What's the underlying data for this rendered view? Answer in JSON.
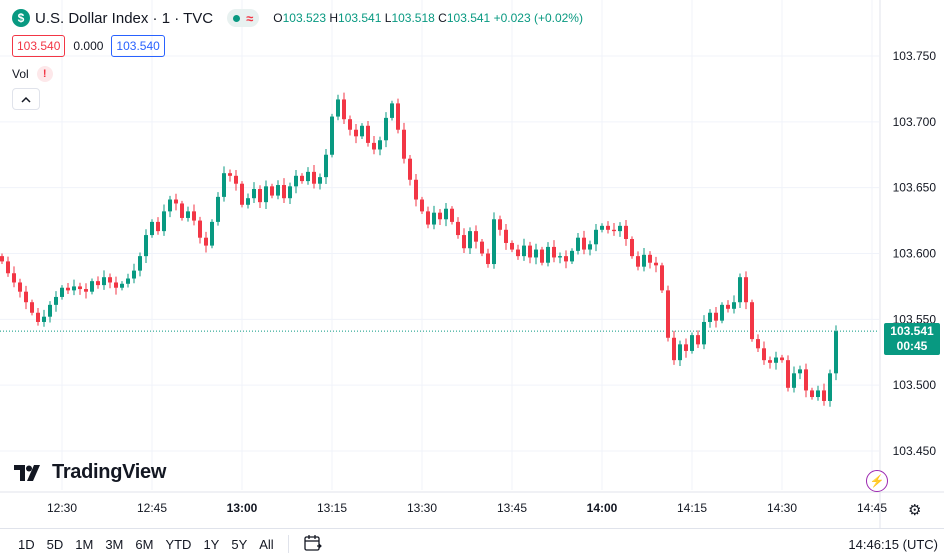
{
  "header": {
    "symbol_badge": "$",
    "title": "U.S. Dollar Index · 1 · TVC",
    "ohlc": {
      "o_label": "O",
      "o": "103.523",
      "h_label": "H",
      "h": "103.541",
      "l_label": "L",
      "l": "103.518",
      "c_label": "C",
      "c": "103.541",
      "change": "+0.023 (+0.02%)"
    },
    "sell_price": "103.540",
    "spread": "0.000",
    "buy_price": "103.540",
    "vol_label": "Vol",
    "vol_warning": "!"
  },
  "logo_text": "TradingView",
  "current_price": {
    "value": "103.541",
    "countdown": "00:45",
    "color": "#089981"
  },
  "colors": {
    "up": "#089981",
    "down": "#f23645",
    "grid": "#f0f3fa"
  },
  "bottom_bar": {
    "ranges": [
      "1D",
      "5D",
      "1M",
      "3M",
      "6M",
      "YTD",
      "1Y",
      "5Y",
      "All"
    ],
    "clock": "14:46:15 (UTC)"
  },
  "icons": {
    "calendar": "calendar-range-icon",
    "settings": "gear-icon",
    "bolt": "lightning-icon",
    "collapse": "chevron-up-icon"
  },
  "chart_data": {
    "type": "candlestick",
    "interval": "1 minute",
    "ylim": [
      103.425,
      103.775
    ],
    "y_ticks": [
      "103.750",
      "103.700",
      "103.650",
      "103.600",
      "103.550",
      "103.500",
      "103.450"
    ],
    "x_ticks": [
      "12:30",
      "12:45",
      "13:00",
      "13:15",
      "13:30",
      "13:45",
      "14:00",
      "14:15",
      "14:30",
      "14:45"
    ],
    "x_start": "12:20",
    "last_price": 103.541,
    "closes": [
      103.594,
      103.585,
      103.578,
      103.571,
      103.563,
      103.555,
      103.548,
      103.552,
      103.561,
      103.567,
      103.574,
      103.572,
      103.575,
      103.573,
      103.571,
      103.579,
      103.576,
      103.582,
      103.578,
      103.574,
      103.577,
      103.581,
      103.587,
      103.598,
      103.614,
      103.624,
      103.617,
      103.632,
      103.641,
      103.638,
      103.627,
      103.632,
      103.625,
      103.612,
      103.606,
      103.624,
      103.643,
      103.661,
      103.659,
      103.653,
      103.637,
      103.642,
      103.649,
      103.639,
      103.651,
      103.644,
      103.652,
      103.642,
      103.651,
      103.659,
      103.655,
      103.662,
      103.653,
      103.658,
      103.675,
      103.704,
      103.717,
      103.702,
      103.694,
      103.689,
      103.697,
      103.684,
      103.679,
      103.686,
      103.703,
      103.714,
      103.694,
      103.672,
      103.656,
      103.641,
      103.632,
      103.622,
      103.631,
      103.626,
      103.634,
      103.624,
      103.614,
      103.604,
      103.617,
      103.609,
      103.6,
      103.592,
      103.626,
      103.618,
      103.608,
      103.603,
      103.598,
      103.606,
      103.597,
      103.603,
      103.593,
      103.605,
      103.597,
      103.598,
      103.594,
      103.602,
      103.612,
      103.603,
      103.607,
      103.618,
      103.621,
      103.618,
      103.617,
      103.621,
      103.611,
      103.598,
      103.59,
      103.599,
      103.593,
      103.591,
      103.572,
      103.536,
      103.519,
      103.531,
      103.526,
      103.538,
      103.531,
      103.548,
      103.555,
      103.549,
      103.561,
      103.558,
      103.563,
      103.582,
      103.563,
      103.535,
      103.528,
      103.519,
      103.517,
      103.521,
      103.519,
      103.498,
      103.509,
      103.512,
      103.496,
      103.491,
      103.496,
      103.488,
      103.509,
      103.541
    ]
  }
}
